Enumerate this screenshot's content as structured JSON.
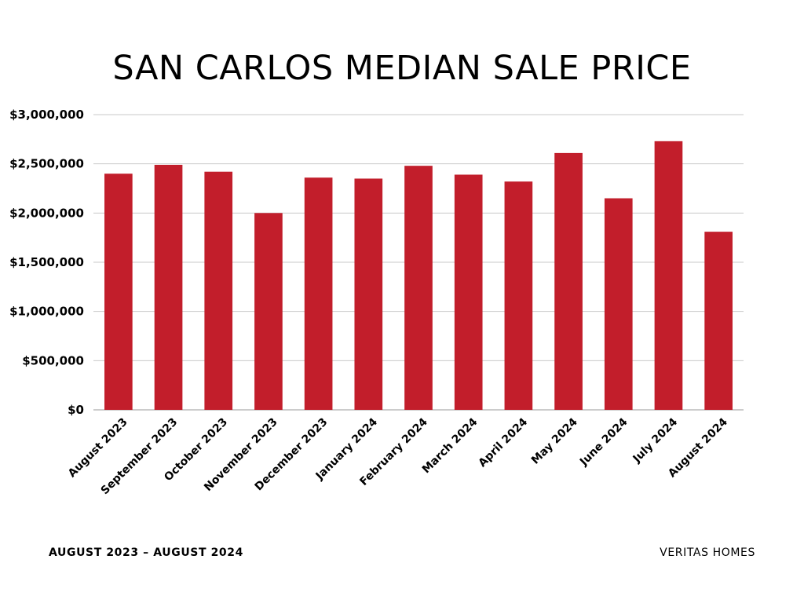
{
  "header": {
    "title": "SAN CARLOS MEDIAN SALE PRICE"
  },
  "footer": {
    "date_range": "AUGUST 2023 – AUGUST 2024",
    "brand": "VERITAS HOMES"
  },
  "colors": {
    "bar": "#c21e2b",
    "grid": "#c8c8c8",
    "axis": "#999999"
  },
  "chart_data": {
    "type": "bar",
    "title": "SAN CARLOS MEDIAN SALE PRICE",
    "xlabel": "",
    "ylabel": "",
    "categories": [
      "August 2023",
      "September 2023",
      "October 2023",
      "November 2023",
      "December 2023",
      "January 2024",
      "February 2024",
      "March 2024",
      "April 2024",
      "May 2024",
      "June 2024",
      "July 2024",
      "August 2024"
    ],
    "values": [
      2400000,
      2490000,
      2420000,
      2000000,
      2360000,
      2350000,
      2480000,
      2390000,
      2320000,
      2610000,
      2150000,
      2730000,
      1810000
    ],
    "ylim": [
      0,
      3000000
    ],
    "y_ticks": [
      0,
      500000,
      1000000,
      1500000,
      2000000,
      2500000,
      3000000
    ],
    "y_tick_labels": [
      "$0",
      "$500,000",
      "$1,000,000",
      "$1,500,000",
      "$2,000,000",
      "$2,500,000",
      "$3,000,000"
    ],
    "grid": true,
    "legend": "none"
  }
}
